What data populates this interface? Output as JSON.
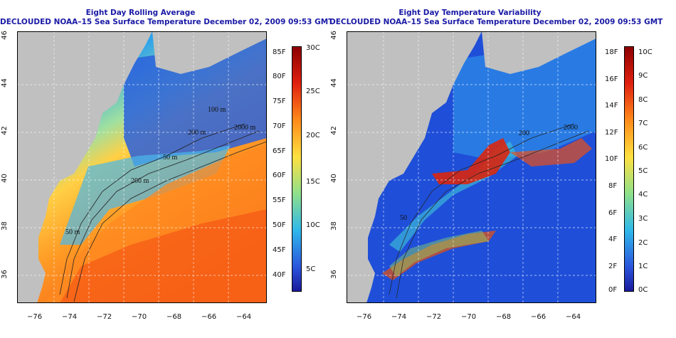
{
  "panels": [
    {
      "id": "avg",
      "title_line1": "Eight Day Rolling Average",
      "title_line2": "DECLOUDED NOAA–15 Sea Surface Temperature December 02, 2009 09:53 GMT",
      "x_ticks": [
        "−76",
        "−74",
        "−72",
        "−70",
        "−68",
        "−66",
        "−64"
      ],
      "y_ticks": [
        "36",
        "38",
        "40",
        "42",
        "44",
        "46"
      ],
      "contour_labels": [
        "100 m",
        "200 m",
        "2000 m",
        "50 m",
        "200 m",
        "50 m"
      ],
      "colorbar_f": [
        "85F",
        "80F",
        "75F",
        "70F",
        "65F",
        "60F",
        "55F",
        "50F",
        "45F",
        "40F"
      ],
      "colorbar_c": [
        "30C",
        "25C",
        "20C",
        "15C",
        "10C",
        "5C"
      ]
    },
    {
      "id": "var",
      "title_line1": "Eight Day Temperature Variability",
      "title_line2": "DECLOUDED NOAA–15 Sea Surface Temperature December 02, 2009 09:53 GMT",
      "x_ticks": [
        "−76",
        "−74",
        "−72",
        "−70",
        "−68",
        "−66",
        "−64"
      ],
      "y_ticks": [
        "36",
        "38",
        "40",
        "42",
        "44",
        "46"
      ],
      "contour_labels": [
        "200",
        "2000",
        "50"
      ],
      "colorbar_f": [
        "18F",
        "16F",
        "14F",
        "12F",
        "10F",
        "8F",
        "6F",
        "4F",
        "2F",
        "0F"
      ],
      "colorbar_c": [
        "10C",
        "9C",
        "8C",
        "7C",
        "6C",
        "5C",
        "4C",
        "3C",
        "2C",
        "1C",
        "0C"
      ]
    }
  ],
  "colors": {
    "title": "#1a1aa6",
    "land": "#c0c0c0",
    "grid": "#ffffff"
  }
}
